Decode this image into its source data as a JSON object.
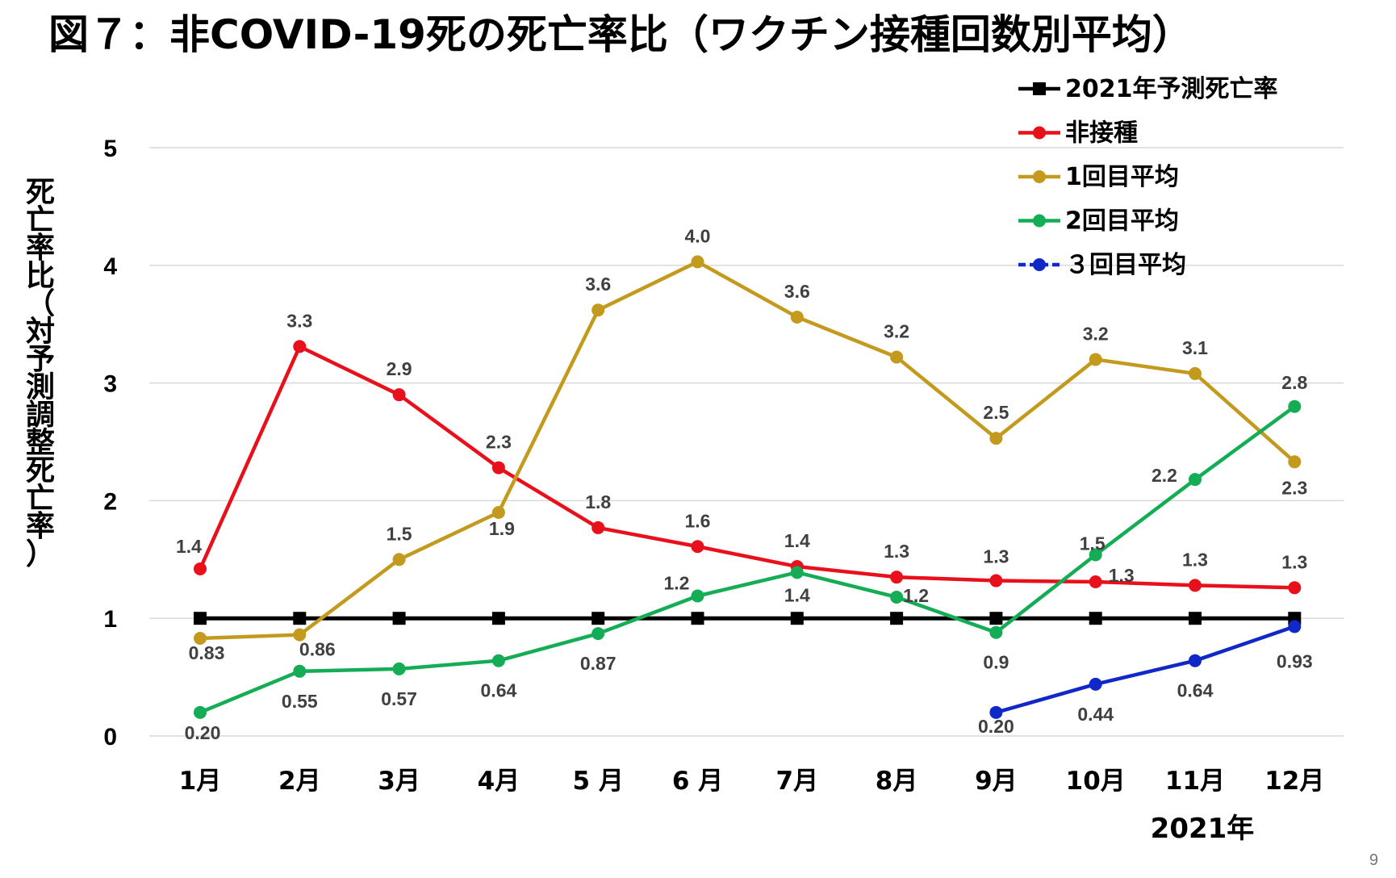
{
  "page": {
    "title": "図７：非COVID-19死の死亡率比（ワクチン接種回数別平均）",
    "page_number": "9"
  },
  "chart_data": {
    "type": "line",
    "title": "図７：非COVID-19死の死亡率比（ワクチン接種回数別平均）",
    "ylabel": "死亡率比（対予測調整死亡率）",
    "xlabel": "2021年",
    "categories": [
      "1月",
      "2月",
      "3月",
      "4月",
      "5 月",
      "6 月",
      "7月",
      "8月",
      "9月",
      "10月",
      "11月",
      "12月"
    ],
    "ylim": [
      0,
      5
    ],
    "yticks": [
      0,
      1,
      2,
      3,
      4,
      5
    ],
    "ytick_labels": [
      "0",
      "1",
      "2",
      "3",
      "4",
      "5"
    ],
    "grid": true,
    "legend_position": "top-right",
    "series": [
      {
        "name": "2021年予測死亡率",
        "color": "#000000",
        "marker": "square",
        "values": [
          1,
          1,
          1,
          1,
          1,
          1,
          1,
          1,
          1,
          1,
          1,
          1
        ],
        "labels": [
          null,
          null,
          null,
          null,
          null,
          null,
          null,
          null,
          null,
          null,
          null,
          null
        ]
      },
      {
        "name": "非接種",
        "color": "#e8101a",
        "marker": "circle",
        "values": [
          1.42,
          3.31,
          2.9,
          2.28,
          1.77,
          1.61,
          1.44,
          1.35,
          1.32,
          1.31,
          1.28,
          1.26
        ],
        "labels": [
          "1.4",
          "3.3",
          "2.9",
          "2.3",
          "1.8",
          "1.6",
          "1.4",
          "1.3",
          "1.3",
          "1.3",
          "1.3",
          "1.3"
        ]
      },
      {
        "name": "1回目平均",
        "color": "#c49a1e",
        "marker": "circle",
        "values": [
          0.83,
          0.86,
          1.5,
          1.9,
          3.62,
          4.03,
          3.56,
          3.22,
          2.53,
          3.2,
          3.08,
          2.33
        ],
        "labels": [
          "0.83",
          "0.86",
          "1.5",
          "1.9",
          "3.6",
          "4.0",
          "3.6",
          "3.2",
          "2.5",
          "3.2",
          "3.1",
          "2.3"
        ]
      },
      {
        "name": "2回目平均",
        "color": "#14ad55",
        "marker": "circle",
        "values": [
          0.2,
          0.55,
          0.57,
          0.64,
          0.87,
          1.19,
          1.39,
          1.18,
          0.88,
          1.54,
          2.18,
          2.8
        ],
        "labels": [
          "0.20",
          "0.55",
          "0.57",
          "0.64",
          "0.87",
          "1.2",
          "1.4",
          "1.2",
          "0.9",
          "1.5",
          "2.2",
          "2.8"
        ]
      },
      {
        "name": "３回目平均",
        "color": "#1028c8",
        "marker": "circle",
        "dashed_legend": true,
        "values": [
          null,
          null,
          null,
          null,
          null,
          null,
          null,
          null,
          0.2,
          0.44,
          0.64,
          0.93
        ],
        "labels": [
          null,
          null,
          null,
          null,
          null,
          null,
          null,
          null,
          "0.20",
          "0.44",
          "0.64",
          "0.93"
        ]
      }
    ]
  }
}
